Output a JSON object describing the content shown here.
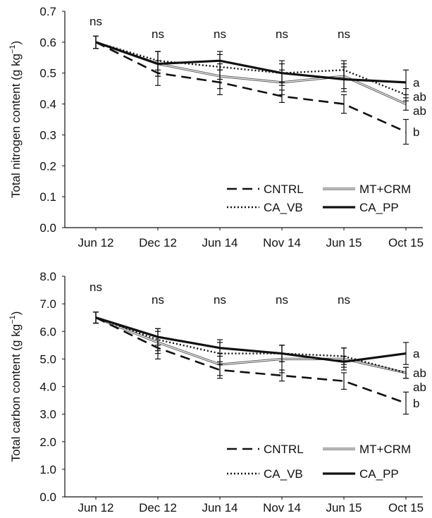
{
  "charts": [
    {
      "ylabel": "Total nitrogen content (g kg",
      "ylabel_sup": "−1",
      "ylabel_close": ")",
      "ylim": [
        0,
        0.7
      ],
      "yticks": [
        "0.0",
        "0.1",
        "0.2",
        "0.3",
        "0.4",
        "0.5",
        "0.6",
        "0.7"
      ],
      "sig_top": [
        "ns",
        "ns",
        "ns",
        "ns",
        "ns"
      ],
      "sig_end": [
        {
          "series": "CA_PP",
          "label": "a"
        },
        {
          "series": "CA_VB",
          "label": "ab"
        },
        {
          "series": "MT+CRM",
          "label": "ab"
        },
        {
          "series": "CNTRL",
          "label": "b"
        }
      ]
    },
    {
      "ylabel": "Total carbon content (g kg",
      "ylabel_sup": "−1",
      "ylabel_close": ")",
      "ylim": [
        0,
        8
      ],
      "yticks": [
        "0.0",
        "1.0",
        "2.0",
        "3.0",
        "4.0",
        "5.0",
        "6.0",
        "7.0",
        "8.0"
      ],
      "sig_top": [
        "ns",
        "ns",
        "ns",
        "ns",
        "ns"
      ],
      "sig_end": [
        {
          "series": "CA_PP",
          "label": "a"
        },
        {
          "series": "CA_VB",
          "label": "ab"
        },
        {
          "series": "MT+CRM",
          "label": "ab"
        },
        {
          "series": "CNTRL",
          "label": "b"
        }
      ]
    }
  ],
  "chart_data": [
    {
      "type": "line",
      "categories": [
        "Jun 12",
        "Dec 12",
        "Jun 14",
        "Nov 14",
        "Jun 15",
        "Oct 15"
      ],
      "ylabel": "Total nitrogen content (g kg−1)",
      "ylim": [
        0,
        0.7
      ],
      "legend": "bottom-right",
      "grid": false,
      "series": [
        {
          "name": "CNTRL",
          "style": "dashed",
          "values": [
            0.6,
            0.5,
            0.47,
            0.425,
            0.4,
            0.31
          ],
          "err": [
            0.02,
            0.04,
            0.04,
            0.02,
            0.03,
            0.04
          ]
        },
        {
          "name": "MT+CRM",
          "style": "double",
          "values": [
            0.6,
            0.53,
            0.49,
            0.47,
            0.49,
            0.4
          ],
          "err": [
            0.02,
            0.04,
            0.04,
            0.04,
            0.04,
            0.02
          ]
        },
        {
          "name": "CA_VB",
          "style": "dotted",
          "values": [
            0.6,
            0.54,
            0.52,
            0.5,
            0.51,
            0.43
          ],
          "err": [
            0.02,
            0.03,
            0.04,
            0.03,
            0.03,
            0.02
          ]
        },
        {
          "name": "CA_PP",
          "style": "solid",
          "values": [
            0.6,
            0.53,
            0.54,
            0.5,
            0.48,
            0.47
          ],
          "err": [
            0.02,
            0.04,
            0.03,
            0.04,
            0.04,
            0.04
          ]
        }
      ]
    },
    {
      "type": "line",
      "categories": [
        "Jun 12",
        "Dec 12",
        "Jun 14",
        "Nov 14",
        "Jun 15",
        "Oct 15"
      ],
      "ylabel": "Total carbon content (g kg−1)",
      "ylim": [
        0,
        8
      ],
      "legend": "bottom-right",
      "grid": false,
      "series": [
        {
          "name": "CNTRL",
          "style": "dashed",
          "values": [
            6.5,
            5.4,
            4.6,
            4.4,
            4.2,
            3.4
          ],
          "err": [
            0.2,
            0.4,
            0.3,
            0.2,
            0.3,
            0.4
          ]
        },
        {
          "name": "MT+CRM",
          "style": "double",
          "values": [
            6.5,
            5.6,
            4.8,
            5.0,
            5.0,
            4.5
          ],
          "err": [
            0.2,
            0.4,
            0.4,
            0.5,
            0.4,
            0.2
          ]
        },
        {
          "name": "CA_VB",
          "style": "dotted",
          "values": [
            6.5,
            5.7,
            5.2,
            5.2,
            5.1,
            4.5
          ],
          "err": [
            0.2,
            0.4,
            0.4,
            0.3,
            0.3,
            0.2
          ]
        },
        {
          "name": "CA_PP",
          "style": "solid",
          "values": [
            6.5,
            5.8,
            5.4,
            5.2,
            4.9,
            5.2
          ],
          "err": [
            0.2,
            0.3,
            0.3,
            0.3,
            0.2,
            0.4
          ]
        }
      ]
    }
  ]
}
